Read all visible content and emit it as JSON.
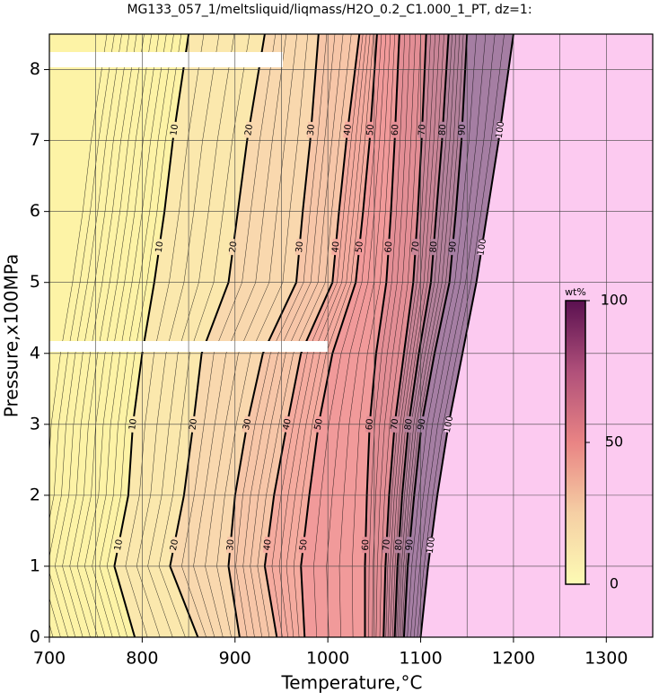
{
  "chart_data": {
    "type": "contour",
    "title": "MG133_057_1/meltsliquid/liqmass/H2O_0.2_C1.000_1_PT, dz=1:",
    "x_label": "Temperature,°C",
    "y_label": "Pressure,x100MPa",
    "xlim": [
      700,
      1350
    ],
    "ylim": [
      0,
      8.5
    ],
    "xticks": [
      700,
      800,
      900,
      1000,
      1100,
      1200,
      1300
    ],
    "yticks": [
      0,
      1,
      2,
      3,
      4,
      5,
      6,
      7,
      8
    ],
    "xgrid": [
      750,
      800,
      850,
      900,
      950,
      1000,
      1050,
      1100,
      1150,
      1200,
      1250,
      1300
    ],
    "grid": true,
    "base_color": "#fdf3a6",
    "contours": [
      {
        "level": 10,
        "color": "#fbe8ad",
        "x": [
          792,
          770,
          785,
          790,
          800,
          813,
          824,
          833,
          850
        ],
        "y": [
          0,
          1,
          2,
          3,
          4,
          5,
          6,
          7,
          8.5
        ]
      },
      {
        "level": 20,
        "color": "#f9d8ae",
        "x": [
          860,
          830,
          845,
          855,
          864,
          893,
          903,
          913,
          932
        ],
        "y": [
          0,
          1,
          2,
          3,
          4,
          5,
          6,
          7,
          8.5
        ]
      },
      {
        "level": 30,
        "color": "#f7c6a8",
        "x": [
          905,
          893,
          900,
          913,
          930,
          966,
          973,
          981,
          990
        ],
        "y": [
          0,
          1,
          2,
          3,
          4,
          5,
          6,
          7,
          8.5
        ]
      },
      {
        "level": 40,
        "color": "#f5ab9f",
        "x": [
          945,
          932,
          942,
          956,
          971,
          1005,
          1012,
          1020,
          1034
        ],
        "y": [
          0,
          1,
          2,
          3,
          4,
          5,
          6,
          7,
          8.5
        ]
      },
      {
        "level": 50,
        "color": "#f19a9a",
        "x": [
          975,
          971,
          980,
          990,
          1005,
          1030,
          1038,
          1045,
          1053
        ],
        "y": [
          0,
          1,
          2,
          3,
          4,
          5,
          6,
          7,
          8.5
        ]
      },
      {
        "level": 60,
        "color": "#e38e95",
        "x": [
          1040,
          1040,
          1042,
          1045,
          1052,
          1063,
          1068,
          1072,
          1077
        ],
        "y": [
          0,
          1,
          2,
          3,
          4,
          5,
          6,
          7,
          8.5
        ]
      },
      {
        "level": 70,
        "color": "#c98597",
        "x": [
          1060,
          1062,
          1066,
          1072,
          1082,
          1092,
          1097,
          1101,
          1106
        ],
        "y": [
          0,
          1,
          2,
          3,
          4,
          5,
          6,
          7,
          8.5
        ]
      },
      {
        "level": 80,
        "color": "#b3819b",
        "x": [
          1072,
          1075,
          1080,
          1087,
          1098,
          1111,
          1117,
          1123,
          1130
        ],
        "y": [
          0,
          1,
          2,
          3,
          4,
          5,
          6,
          7,
          8.5
        ]
      },
      {
        "level": 90,
        "color": "#a57ea3",
        "x": [
          1082,
          1086,
          1093,
          1101,
          1115,
          1131,
          1138,
          1144,
          1150
        ],
        "y": [
          0,
          1,
          2,
          3,
          4,
          5,
          6,
          7,
          8.5
        ]
      },
      {
        "level": 100,
        "color": "#fccaf0",
        "x": [
          1100,
          1108,
          1118,
          1130,
          1145,
          1160,
          1172,
          1184,
          1200
        ],
        "y": [
          0,
          1,
          2,
          3,
          4,
          5,
          6,
          7,
          8.5
        ]
      }
    ],
    "colorbar": {
      "label": "wt%",
      "lim": [
        0,
        100
      ],
      "ticks": [
        0,
        50,
        100
      ],
      "colors": [
        "#fdfbb4",
        "#f5cfa4",
        "#e98484",
        "#b0507a",
        "#5a1050"
      ]
    }
  }
}
